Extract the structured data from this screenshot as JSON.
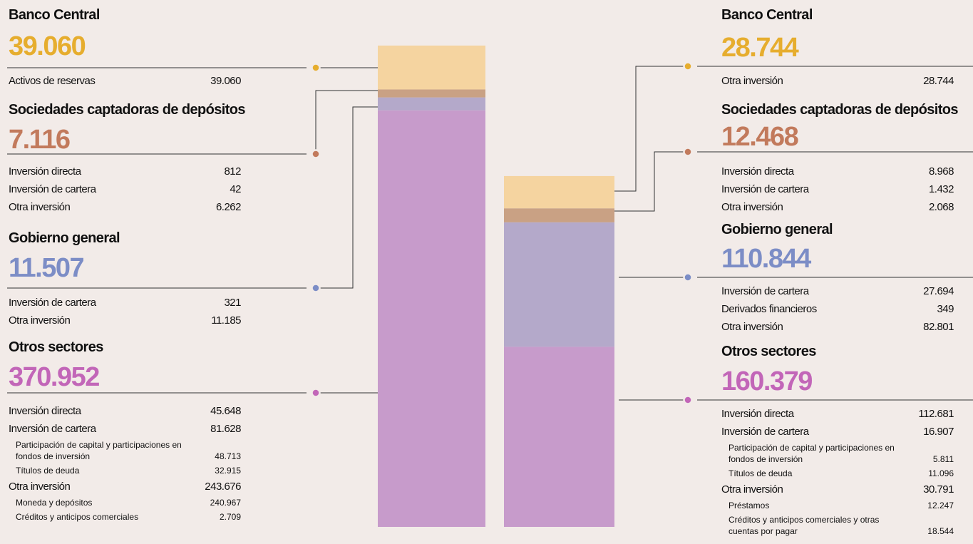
{
  "panels": [
    {
      "sectors": [
        {
          "name": "Banco Central",
          "total": 39060,
          "total_label": "39.060",
          "color": "#e6ad2e",
          "bar_color": "#f5d4a0",
          "items": [
            {
              "label": "Activos de reservas",
              "value": "39.060"
            }
          ]
        },
        {
          "name": "Sociedades captadoras de depósitos",
          "total": 7116,
          "total_label": "7.116",
          "color": "#c27a5c",
          "bar_color": "#c9a184",
          "items": [
            {
              "label": "Inversión directa",
              "value": "812"
            },
            {
              "label": "Inversión de cartera",
              "value": "42"
            },
            {
              "label": "Otra inversión",
              "value": "6.262"
            }
          ]
        },
        {
          "name": "Gobierno general",
          "total": 11507,
          "total_label": "11.507",
          "color": "#7c8dc6",
          "bar_color": "#b4a9ca",
          "items": [
            {
              "label": "Inversión de cartera",
              "value": "321"
            },
            {
              "label": "Otra inversión",
              "value": "11.185"
            }
          ]
        },
        {
          "name": "Otros sectores",
          "total": 370952,
          "total_label": "370.952",
          "color": "#c266b8",
          "bar_color": "#c79bcb",
          "items": [
            {
              "label": "Inversión directa",
              "value": "45.648"
            },
            {
              "label": "Inversión de cartera",
              "value": "81.628",
              "sub": [
                {
                  "label": "Participación de capital y participaciones en fondos de inversión",
                  "value": "48.713"
                },
                {
                  "label": "Títulos de deuda",
                  "value": "32.915"
                }
              ]
            },
            {
              "label": "Otra inversión",
              "value": "243.676",
              "sub": [
                {
                  "label": "Moneda y depósitos",
                  "value": "240.967"
                },
                {
                  "label": "Créditos y anticipos comerciales",
                  "value": "2.709"
                }
              ]
            }
          ]
        }
      ]
    },
    {
      "sectors": [
        {
          "name": "Banco Central",
          "total": 28744,
          "total_label": "28.744",
          "color": "#e6ad2e",
          "bar_color": "#f5d4a0",
          "items": [
            {
              "label": "Otra inversión",
              "value": "28.744"
            }
          ]
        },
        {
          "name": "Sociedades captadoras de depósitos",
          "total": 12468,
          "total_label": "12.468",
          "color": "#c27a5c",
          "bar_color": "#c9a184",
          "items": [
            {
              "label": "Inversión directa",
              "value": "8.968"
            },
            {
              "label": "Inversión de cartera",
              "value": "1.432"
            },
            {
              "label": "Otra inversión",
              "value": "2.068"
            }
          ]
        },
        {
          "name": "Gobierno general",
          "total": 110844,
          "total_label": "110.844",
          "color": "#7c8dc6",
          "bar_color": "#b4a9ca",
          "items": [
            {
              "label": "Inversión de cartera",
              "value": "27.694"
            },
            {
              "label": "Derivados financieros",
              "value": "349"
            },
            {
              "label": "Otra inversión",
              "value": "82.801"
            }
          ]
        },
        {
          "name": "Otros sectores",
          "total": 160379,
          "total_label": "160.379",
          "color": "#c266b8",
          "bar_color": "#c79bcb",
          "items": [
            {
              "label": "Inversión directa",
              "value": "112.681"
            },
            {
              "label": "Inversión de cartera",
              "value": "16.907",
              "sub": [
                {
                  "label": "Participación de capital y participaciones en fondos de inversión",
                  "value": "5.811"
                },
                {
                  "label": "Títulos de deuda",
                  "value": "11.096"
                }
              ]
            },
            {
              "label": "Otra inversión",
              "value": "30.791",
              "sub": [
                {
                  "label": "Préstamos",
                  "value": "12.247"
                },
                {
                  "label": "Créditos y anticipos comerciales y otras cuentas por pagar",
                  "value": "18.544"
                }
              ]
            }
          ]
        }
      ]
    }
  ]
}
